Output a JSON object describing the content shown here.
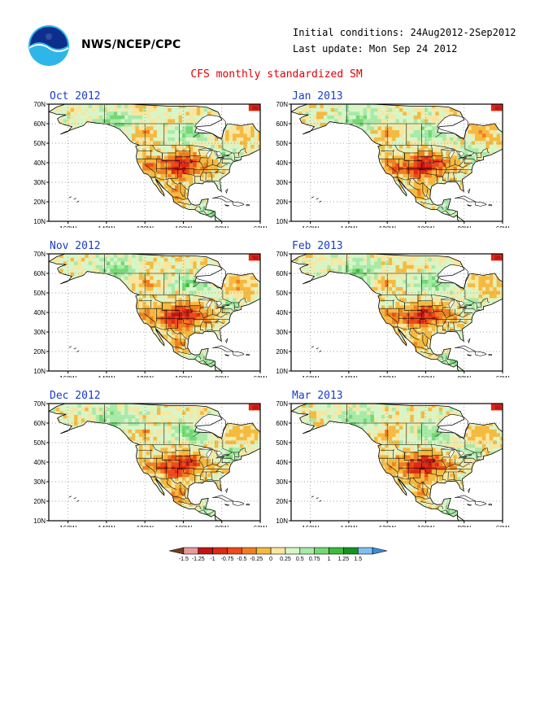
{
  "header": {
    "agency": "NWS/NCEP/CPC",
    "initial_conditions": "Initial conditions: 24Aug2012-2Sep2012",
    "last_update": "Last update: Mon Sep 24 2012",
    "title": "CFS monthly standardized SM"
  },
  "panels": [
    {
      "label": "Oct 2012",
      "variant": 0
    },
    {
      "label": "Jan 2013",
      "variant": 1
    },
    {
      "label": "Nov 2012",
      "variant": 2
    },
    {
      "label": "Feb 2013",
      "variant": 3
    },
    {
      "label": "Dec 2012",
      "variant": 4
    },
    {
      "label": "Mar 2013",
      "variant": 5
    }
  ],
  "axes": {
    "lat_labels": [
      "70N",
      "60N",
      "50N",
      "40N",
      "30N",
      "20N",
      "10N"
    ],
    "lon_labels": [
      "160W",
      "140W",
      "120W",
      "100W",
      "80W",
      "60W"
    ],
    "lat_range": [
      10,
      70
    ],
    "lon_range": [
      -170,
      -60
    ]
  },
  "colorbar": {
    "labels": [
      "-1.5",
      "-1.25",
      "-1",
      "-0.75",
      "-0.5",
      "-0.25",
      "0",
      "0.25",
      "0.5",
      "0.75",
      "1",
      "1.25",
      "1.5"
    ],
    "colors": [
      "#7a3a1e",
      "#e89a9a",
      "#c21515",
      "#dd2a15",
      "#ee4a1a",
      "#f07f22",
      "#f5ba40",
      "#f8e6a0",
      "#d8f5c8",
      "#a8eaa8",
      "#74d874",
      "#3cbc3c",
      "#12961e",
      "#7fc0f0",
      "#3c8ce6"
    ]
  },
  "palette": {
    "ocean": "#ffffff",
    "gray_land": "#ffffff",
    "near_zero_pos": "#d8f5c8",
    "near_zero_neg": "#f8e6a0"
  }
}
